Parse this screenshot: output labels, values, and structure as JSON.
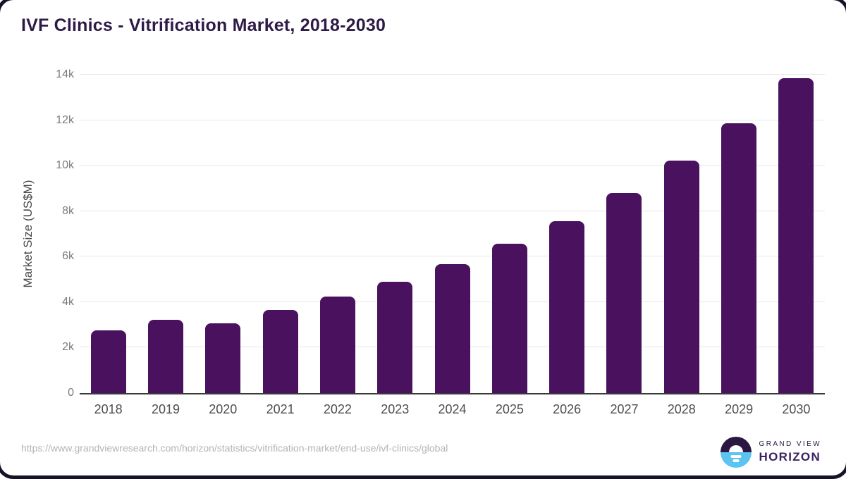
{
  "title": "IVF Clinics - Vitrification Market, 2018-2030",
  "chart_data": {
    "type": "bar",
    "title": "IVF Clinics - Vitrification Market, 2018-2030",
    "categories": [
      "2018",
      "2019",
      "2020",
      "2021",
      "2022",
      "2023",
      "2024",
      "2025",
      "2026",
      "2027",
      "2028",
      "2029",
      "2030"
    ],
    "values": [
      2770,
      3210,
      3060,
      3670,
      4230,
      4900,
      5660,
      6560,
      7560,
      8800,
      10220,
      11860,
      13860
    ],
    "xlabel": "",
    "ylabel": "Market Size (US$M)",
    "ylim": [
      0,
      14000
    ],
    "yticks": [
      "0",
      "2k",
      "4k",
      "6k",
      "8k",
      "10k",
      "12k",
      "14k"
    ],
    "ytick_values": [
      0,
      2000,
      4000,
      6000,
      8000,
      10000,
      12000,
      14000
    ],
    "grid": "horizontal",
    "legend": "none",
    "bar_color": "#4A115E"
  },
  "colors": {
    "title": "#2E1A47",
    "bar": "#4A115E",
    "gridline": "#e7e7e7",
    "axis_line": "#3b3b3b",
    "logo_blue": "#5BC4F0",
    "logo_dark": "#2A1843"
  },
  "footer": {
    "source_url": "https://www.grandviewresearch.com/horizon/statistics/vitrification-market/end-use/ivf-clinics/global",
    "logo": {
      "line1": "GRAND VIEW",
      "line2": "HORIZON"
    }
  }
}
